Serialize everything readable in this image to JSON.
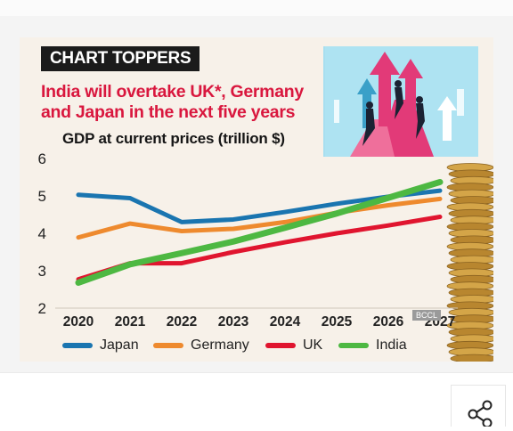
{
  "kicker": "CHART TOPPERS",
  "headline": "India will overtake UK*, Germany and Japan in the next five years",
  "chart_data": {
    "type": "line",
    "title": "GDP at current prices (trillion $)",
    "x": [
      "2020",
      "2021",
      "2022",
      "2023",
      "2024",
      "2025",
      "2026",
      "2027"
    ],
    "ylim": [
      2,
      6
    ],
    "yticks": [
      2,
      3,
      4,
      5,
      6
    ],
    "grid": false,
    "legend_placement": "bottom",
    "series": [
      {
        "name": "Japan",
        "color": "#1a75b0",
        "values": [
          5.03,
          4.94,
          4.3,
          4.37,
          4.57,
          4.79,
          4.98,
          5.14
        ]
      },
      {
        "name": "Germany",
        "color": "#ee8a2e",
        "values": [
          3.89,
          4.26,
          4.06,
          4.12,
          4.3,
          4.55,
          4.75,
          4.92
        ]
      },
      {
        "name": "UK",
        "color": "#e0152f",
        "values": [
          2.77,
          3.2,
          3.2,
          3.5,
          3.76,
          4.0,
          4.21,
          4.44
        ]
      },
      {
        "name": "India",
        "color": "#4db842",
        "values": [
          2.68,
          3.17,
          3.47,
          3.78,
          4.15,
          4.53,
          4.95,
          5.37
        ]
      }
    ]
  },
  "watermark": "BCCL",
  "icons": {
    "share": "share-icon"
  }
}
